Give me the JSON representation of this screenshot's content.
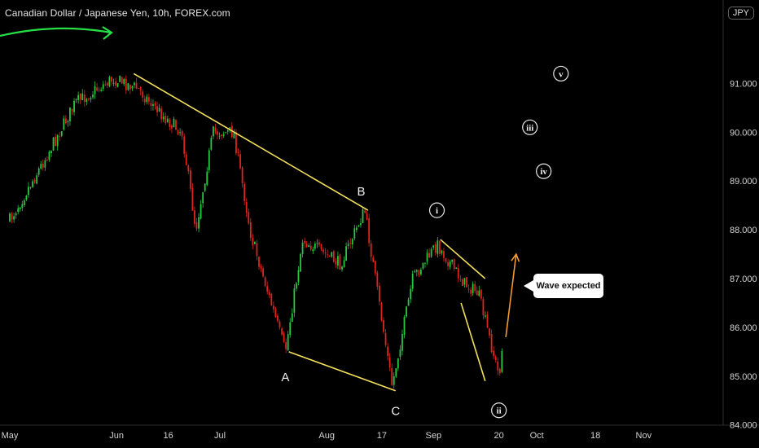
{
  "header": {
    "title": "Canadian Dollar / Japanese Yen, 10h, FOREX.com",
    "currency": "JPY"
  },
  "callout": {
    "text": "Wave expected"
  },
  "colors": {
    "up": "#26c940",
    "down": "#e0241d",
    "trendline": "#f2e05a",
    "projection": "#f59b2b",
    "swoosh": "#26e046",
    "axis_text": "#d4d4d4"
  },
  "chart_data": {
    "type": "candlestick",
    "title": "Canadian Dollar / Japanese Yen, 10h, FOREX.com",
    "ylim": [
      83.8,
      92.3
    ],
    "y_ticks": [
      "84.000",
      "85.000",
      "86.000",
      "87.000",
      "88.000",
      "89.000",
      "90.000",
      "91.000"
    ],
    "x_ticks": [
      "May",
      "Jun",
      "16",
      "Jul",
      "Aug",
      "17",
      "Sep",
      "20",
      "Oct",
      "18",
      "Nov"
    ],
    "price_path": [
      {
        "date": "May 1",
        "price": 88.2
      },
      {
        "date": "May 10",
        "price": 89.3
      },
      {
        "date": "May 20",
        "price": 90.6
      },
      {
        "date": "May 31",
        "price": 91.1
      },
      {
        "date": "Jun 7",
        "price": 90.9
      },
      {
        "date": "Jun 15",
        "price": 90.3
      },
      {
        "date": "Jun 20",
        "price": 90.0
      },
      {
        "date": "Jun 24",
        "price": 88.0
      },
      {
        "date": "Jun 29",
        "price": 90.0
      },
      {
        "date": "Jul 5",
        "price": 90.0
      },
      {
        "date": "Jul 10",
        "price": 87.9
      },
      {
        "date": "Jul 20",
        "price": 85.5
      },
      {
        "date": "Jul 25",
        "price": 87.8
      },
      {
        "date": "Aug 5",
        "price": 87.3
      },
      {
        "date": "Aug 12",
        "price": 88.4
      },
      {
        "date": "Aug 20",
        "price": 84.8
      },
      {
        "date": "Aug 26",
        "price": 87.0
      },
      {
        "date": "Sep 2",
        "price": 87.7
      },
      {
        "date": "Sep 10",
        "price": 86.9
      },
      {
        "date": "Sep 14",
        "price": 86.7
      },
      {
        "date": "Sep 20",
        "price": 85.0
      },
      {
        "date": "Sep 21",
        "price": 85.6
      }
    ],
    "trendlines": [
      {
        "from": {
          "date": "Jun 6",
          "price": 91.2
        },
        "to": {
          "date": "Aug 13",
          "price": 88.4
        }
      },
      {
        "from": {
          "date": "Jul 21",
          "price": 85.5
        },
        "to": {
          "date": "Aug 21",
          "price": 84.7
        }
      },
      {
        "from": {
          "date": "Sep 3",
          "price": 87.8
        },
        "to": {
          "date": "Sep 16",
          "price": 87.0
        }
      },
      {
        "from": {
          "date": "Sep 9",
          "price": 86.5
        },
        "to": {
          "date": "Sep 16",
          "price": 84.9
        }
      }
    ],
    "projection": {
      "from": {
        "date": "Sep 22",
        "price": 85.8
      },
      "to": {
        "date": "Sep 25",
        "price": 87.5
      }
    },
    "wave_labels": [
      {
        "text": "A",
        "date": "Jul 20",
        "price": 85.0
      },
      {
        "text": "B",
        "date": "Aug 11",
        "price": 88.8
      },
      {
        "text": "C",
        "date": "Aug 21",
        "price": 84.3
      },
      {
        "text": "i",
        "date": "Sep 2",
        "price": 88.4,
        "circled": true
      },
      {
        "text": "ii",
        "date": "Sep 20",
        "price": 84.3,
        "circled": true
      },
      {
        "text": "iii",
        "date": "Sep 29",
        "price": 90.1,
        "circled": true
      },
      {
        "text": "iv",
        "date": "Oct 3",
        "price": 89.2,
        "circled": true
      },
      {
        "text": "v",
        "date": "Oct 8",
        "price": 91.2,
        "circled": true
      }
    ]
  }
}
